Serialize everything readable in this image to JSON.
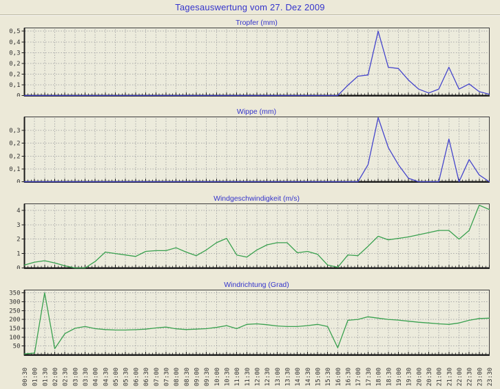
{
  "header": {
    "title": "Tagesauswertung vom 27. Dez 2009"
  },
  "colors": {
    "accent_blue": "#3333cc",
    "line_blue": "#4444cc",
    "line_green": "#38a04e",
    "grid": "#a9a9a9",
    "axis": "#1a1a1a",
    "page_bg": "#ece9d8",
    "plot_bg": "#ecebdc",
    "tick_text": "#333333"
  },
  "chart_data": {
    "type": "line",
    "title": "Tagesauswertung vom 27. Dez 2009",
    "x_label_rotation": -90,
    "grid": true,
    "legend": "none",
    "x_labels": [
      "00:30",
      "01:00",
      "01:30",
      "02:00",
      "02:30",
      "03:00",
      "03:30",
      "04:00",
      "04:30",
      "05:00",
      "05:30",
      "06:00",
      "06:30",
      "07:00",
      "07:30",
      "08:00",
      "08:30",
      "09:00",
      "09:30",
      "10:00",
      "10:30",
      "11:00",
      "11:30",
      "12:00",
      "12:30",
      "13:00",
      "13:30",
      "14:00",
      "14:30",
      "15:00",
      "15:30",
      "16:00",
      "16:30",
      "17:00",
      "17:30",
      "18:00",
      "18:30",
      "19:00",
      "19:30",
      "20:00",
      "20:30",
      "21:00",
      "21:30",
      "22:00",
      "22:30",
      "23:00",
      "23:30"
    ],
    "charts": [
      {
        "title": "Tropfer (mm)",
        "color": "#4444cc",
        "ylim": [
          0,
          0.52
        ],
        "yticks": [
          {
            "v": 0.5,
            "t": "0,5"
          },
          {
            "v": 0.4167,
            "t": "0,4"
          },
          {
            "v": 0.3333,
            "t": "0,3"
          },
          {
            "v": 0.25,
            "t": "0,2"
          },
          {
            "v": 0.1667,
            "t": "0,2"
          },
          {
            "v": 0.0833,
            "t": "0,1"
          },
          {
            "v": 0,
            "t": "0"
          }
        ],
        "values": [
          0,
          0,
          0,
          0,
          0,
          0,
          0,
          0,
          0,
          0,
          0,
          0,
          0,
          0,
          0,
          0,
          0,
          0,
          0,
          0,
          0,
          0,
          0,
          0,
          0,
          0,
          0,
          0,
          0,
          0,
          0,
          0,
          0.08,
          0.15,
          0.16,
          0.5,
          0.22,
          0.21,
          0.12,
          0.05,
          0.02,
          0.05,
          0.22,
          0.05,
          0.09,
          0.03,
          0.01
        ]
      },
      {
        "title": "Wippe (mm)",
        "color": "#4444cc",
        "ylim": [
          0,
          0.375
        ],
        "yticks": [
          {
            "v": 0.3,
            "t": "0,3"
          },
          {
            "v": 0.225,
            "t": "0,2"
          },
          {
            "v": 0.15,
            "t": "0,2"
          },
          {
            "v": 0.075,
            "t": "0,1"
          },
          {
            "v": 0,
            "t": "0"
          }
        ],
        "values": [
          0,
          0,
          0,
          0,
          0,
          0,
          0,
          0,
          0,
          0,
          0,
          0,
          0,
          0,
          0,
          0,
          0,
          0,
          0,
          0,
          0,
          0,
          0,
          0,
          0,
          0,
          0,
          0,
          0,
          0,
          0,
          0,
          0,
          0,
          0.1,
          0.375,
          0.2,
          0.1,
          0.02,
          0,
          0,
          0,
          0.25,
          0,
          0.13,
          0.04,
          0
        ]
      },
      {
        "title": "Windgeschwindigkeit (m/s)",
        "color": "#38a04e",
        "ylim": [
          0,
          4.4
        ],
        "yticks": [
          {
            "v": 4,
            "t": "4"
          },
          {
            "v": 3,
            "t": "3"
          },
          {
            "v": 2,
            "t": "2"
          },
          {
            "v": 1,
            "t": "1"
          },
          {
            "v": 0,
            "t": "0"
          }
        ],
        "values": [
          0.2,
          0.4,
          0.5,
          0.35,
          0.15,
          0,
          0,
          0.45,
          1.1,
          1.0,
          0.9,
          0.8,
          1.15,
          1.2,
          1.2,
          1.4,
          1.1,
          0.85,
          1.25,
          1.75,
          2.05,
          0.9,
          0.75,
          1.25,
          1.6,
          1.75,
          1.75,
          1.05,
          1.15,
          0.95,
          0.2,
          0.05,
          0.9,
          0.85,
          1.5,
          2.2,
          1.95,
          2.05,
          2.15,
          2.3,
          2.45,
          2.6,
          2.6,
          2.0,
          2.6,
          4.35,
          4.05
        ]
      },
      {
        "title": "Windrichtung (Grad)",
        "color": "#38a04e",
        "ylim": [
          0,
          362
        ],
        "yticks": [
          {
            "v": 350,
            "t": "350"
          },
          {
            "v": 300,
            "t": "300"
          },
          {
            "v": 250,
            "t": "250"
          },
          {
            "v": 200,
            "t": "200"
          },
          {
            "v": 150,
            "t": "150"
          },
          {
            "v": 100,
            "t": "100"
          },
          {
            "v": 50,
            "t": "50"
          }
        ],
        "values": [
          5,
          10,
          350,
          35,
          120,
          150,
          160,
          148,
          143,
          140,
          140,
          142,
          145,
          152,
          157,
          147,
          143,
          145,
          148,
          155,
          165,
          148,
          172,
          175,
          170,
          163,
          160,
          160,
          165,
          172,
          160,
          40,
          195,
          200,
          215,
          207,
          200,
          196,
          190,
          184,
          180,
          175,
          172,
          180,
          195,
          205,
          207
        ]
      }
    ]
  }
}
